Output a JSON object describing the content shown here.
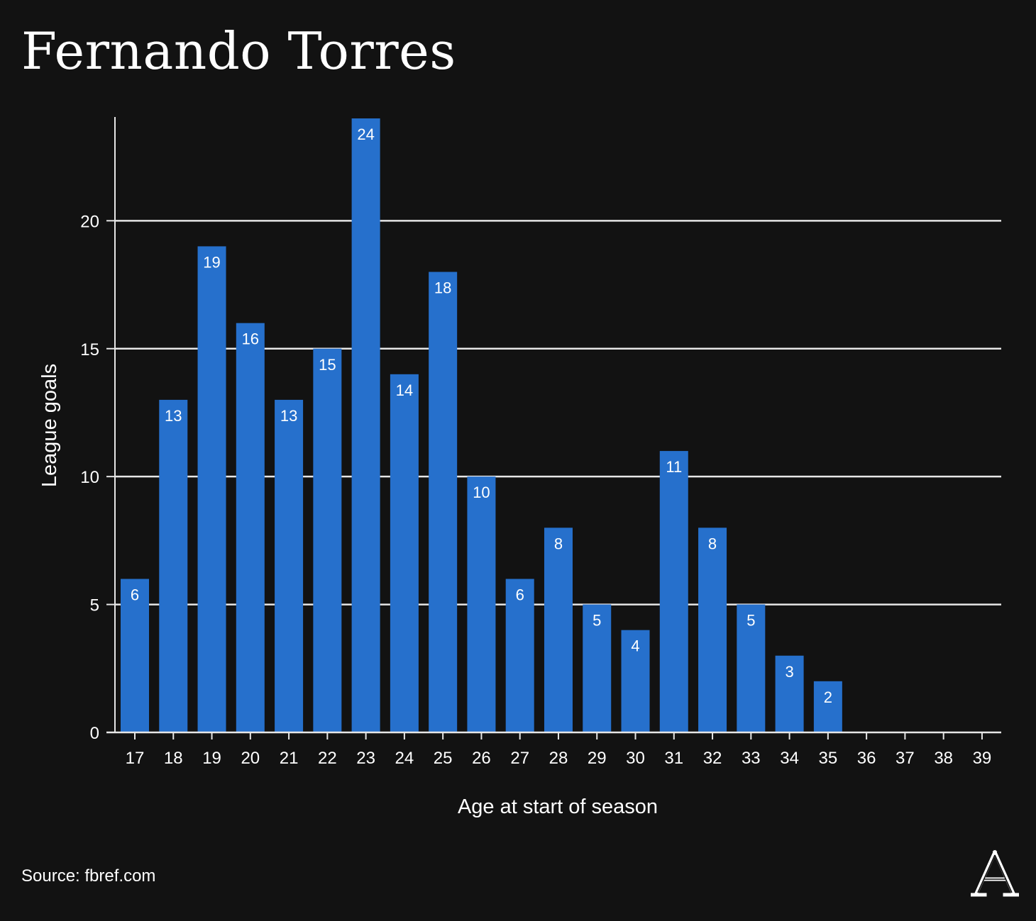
{
  "chart_data": {
    "type": "bar",
    "title": "Fernando Torres",
    "xlabel": "Age at start of season",
    "ylabel": "League goals",
    "categories": [
      "17",
      "18",
      "19",
      "20",
      "21",
      "22",
      "23",
      "24",
      "25",
      "26",
      "27",
      "28",
      "29",
      "30",
      "31",
      "32",
      "33",
      "34",
      "35",
      "36",
      "37",
      "38",
      "39"
    ],
    "values": [
      6,
      13,
      19,
      16,
      13,
      15,
      24,
      14,
      18,
      10,
      6,
      8,
      5,
      4,
      11,
      8,
      5,
      3,
      2,
      null,
      null,
      null,
      null
    ],
    "ylim": [
      0,
      24
    ],
    "yticks": [
      0,
      5,
      10,
      15,
      20
    ],
    "grid": true,
    "bar_color": "#2670CC",
    "background": "#121212"
  },
  "source": "Source: fbref.com",
  "logo": {
    "icon": "athletic-logo-icon",
    "text": "A"
  }
}
